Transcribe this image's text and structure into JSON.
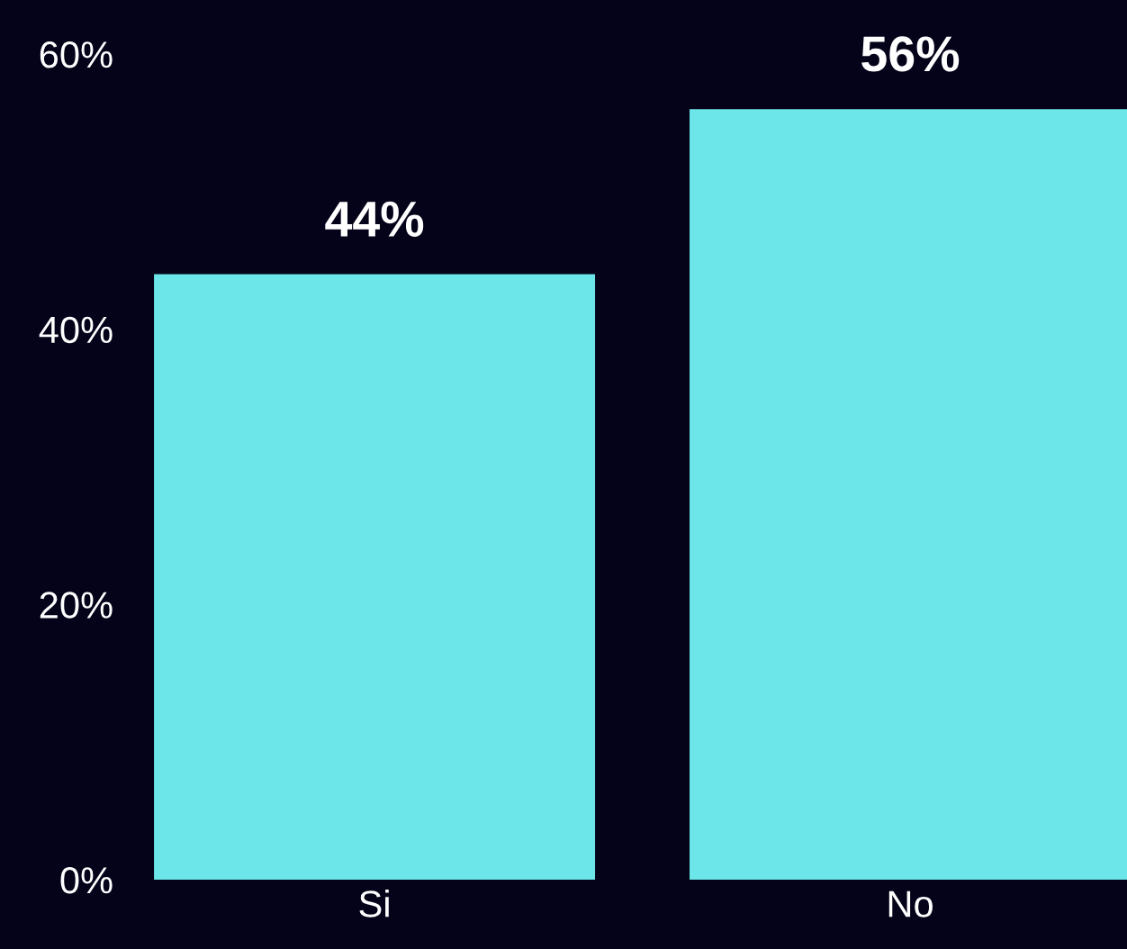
{
  "chart_data": {
    "type": "bar",
    "categories": [
      "Si",
      "No"
    ],
    "values": [
      44,
      56
    ],
    "value_labels": [
      "44%",
      "56%"
    ],
    "color": "#6ce6e8",
    "ylim": [
      0,
      60
    ],
    "yticks": [
      {
        "value": 0,
        "label": "0%"
      },
      {
        "value": 20,
        "label": "20%"
      },
      {
        "value": 40,
        "label": "40%"
      },
      {
        "value": 60,
        "label": "60%"
      }
    ],
    "grid": false,
    "legend": false
  }
}
